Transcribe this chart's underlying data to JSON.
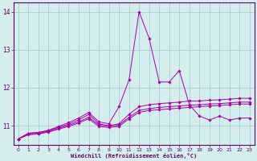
{
  "x": [
    0,
    1,
    2,
    3,
    4,
    5,
    6,
    7,
    8,
    9,
    10,
    11,
    12,
    13,
    14,
    15,
    16,
    17,
    18,
    19,
    20,
    21,
    22,
    23
  ],
  "lines": [
    [
      10.65,
      10.8,
      10.82,
      10.88,
      10.98,
      11.08,
      11.2,
      11.35,
      11.1,
      11.05,
      11.5,
      12.2,
      14.0,
      13.3,
      12.15,
      12.15,
      12.45,
      11.55,
      11.25,
      11.15,
      11.25,
      11.15,
      11.2,
      11.2
    ],
    [
      10.65,
      10.8,
      10.82,
      10.87,
      10.96,
      11.04,
      11.15,
      11.3,
      11.05,
      11.0,
      11.05,
      11.3,
      11.5,
      11.55,
      11.58,
      11.6,
      11.62,
      11.65,
      11.65,
      11.67,
      11.68,
      11.7,
      11.72,
      11.72
    ],
    [
      10.65,
      10.78,
      10.8,
      10.85,
      10.93,
      11.01,
      11.1,
      11.22,
      11.02,
      10.98,
      11.02,
      11.22,
      11.4,
      11.45,
      11.48,
      11.5,
      11.52,
      11.54,
      11.55,
      11.57,
      11.58,
      11.6,
      11.62,
      11.62
    ],
    [
      10.65,
      10.76,
      10.78,
      10.83,
      10.91,
      10.98,
      11.07,
      11.18,
      10.98,
      10.95,
      10.98,
      11.18,
      11.35,
      11.4,
      11.42,
      11.44,
      11.46,
      11.48,
      11.5,
      11.52,
      11.53,
      11.55,
      11.57,
      11.57
    ]
  ],
  "line_color": "#aa00aa",
  "background_color": "#d4eeee",
  "grid_color": "#a0c8c8",
  "axis_color": "#660066",
  "text_color": "#660066",
  "xlabel": "Windchill (Refroidissement éolien,°C)",
  "ylim": [
    10.5,
    14.25
  ],
  "xlim": [
    -0.5,
    23.5
  ],
  "yticks": [
    11,
    12,
    13,
    14
  ],
  "xticks": [
    0,
    1,
    2,
    3,
    4,
    5,
    6,
    7,
    8,
    9,
    10,
    11,
    12,
    13,
    14,
    15,
    16,
    17,
    18,
    19,
    20,
    21,
    22,
    23
  ],
  "figsize": [
    3.2,
    2.0
  ],
  "dpi": 100
}
